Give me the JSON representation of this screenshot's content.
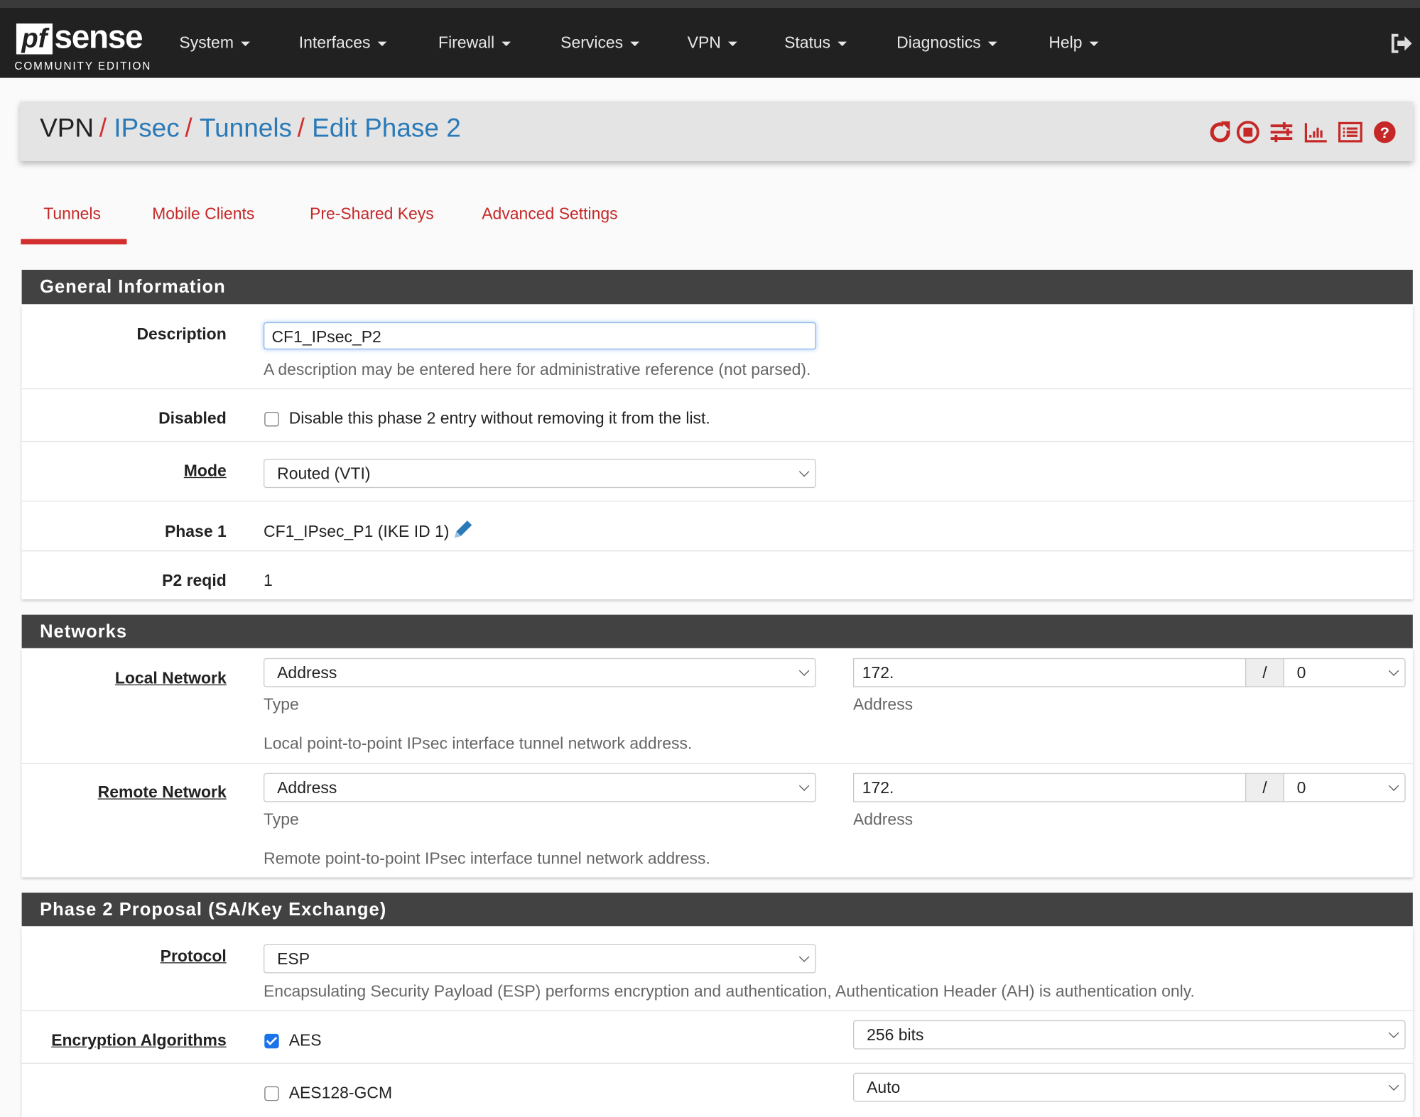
{
  "brand": {
    "logo_mark": "pf",
    "logo_word": "sense",
    "edition": "COMMUNITY EDITION"
  },
  "nav": {
    "items": [
      "System",
      "Interfaces",
      "Firewall",
      "Services",
      "VPN",
      "Status",
      "Diagnostics",
      "Help"
    ],
    "logout_icon": "sign-out-icon"
  },
  "breadcrumb": {
    "items": [
      "VPN",
      "IPsec",
      "Tunnels",
      "Edit Phase 2"
    ],
    "separator": "/"
  },
  "header_icons": [
    "reload-icon",
    "stop-circle-icon",
    "sliders-icon",
    "bar-chart-icon",
    "list-icon",
    "help-circle-icon"
  ],
  "tabs": [
    {
      "label": "Tunnels",
      "active": true
    },
    {
      "label": "Mobile Clients"
    },
    {
      "label": "Pre-Shared Keys"
    },
    {
      "label": "Advanced Settings"
    }
  ],
  "general": {
    "title": "General Information",
    "description": {
      "label": "Description",
      "value": "CF1_IPsec_P2",
      "help": "A description may be entered here for administrative reference (not parsed)."
    },
    "disabled": {
      "label": "Disabled",
      "checked": false,
      "text": "Disable this phase 2 entry without removing it from the list."
    },
    "mode": {
      "label": "Mode",
      "value": "Routed (VTI)"
    },
    "phase1": {
      "label": "Phase 1",
      "value": "CF1_IPsec_P1 (IKE ID 1)"
    },
    "reqid": {
      "label": "P2 reqid",
      "value": "1"
    }
  },
  "networks": {
    "title": "Networks",
    "local": {
      "label": "Local Network",
      "type": "Address",
      "type_caption": "Type",
      "address": "172.",
      "address_caption": "Address",
      "slash": "/",
      "mask": "0",
      "help": "Local point-to-point IPsec interface tunnel network address."
    },
    "remote": {
      "label": "Remote Network",
      "type": "Address",
      "type_caption": "Type",
      "address": "172.",
      "address_caption": "Address",
      "slash": "/",
      "mask": "0",
      "help": "Remote point-to-point IPsec interface tunnel network address."
    }
  },
  "phase2": {
    "title": "Phase 2 Proposal (SA/Key Exchange)",
    "protocol": {
      "label": "Protocol",
      "value": "ESP",
      "help": "Encapsulating Security Payload (ESP) performs encryption and authentication, Authentication Header (AH) is authentication only."
    },
    "encryption": {
      "label": "Encryption Algorithms",
      "algorithms": [
        {
          "name": "AES",
          "checked": true,
          "key_length": "256 bits"
        },
        {
          "name": "AES128-GCM",
          "checked": false,
          "key_length": "Auto"
        }
      ]
    }
  },
  "colors": {
    "accent_red": "#d32f2f",
    "link_blue": "#2a7ab8",
    "navbar": "#212121",
    "panel_heading": "#424242"
  }
}
